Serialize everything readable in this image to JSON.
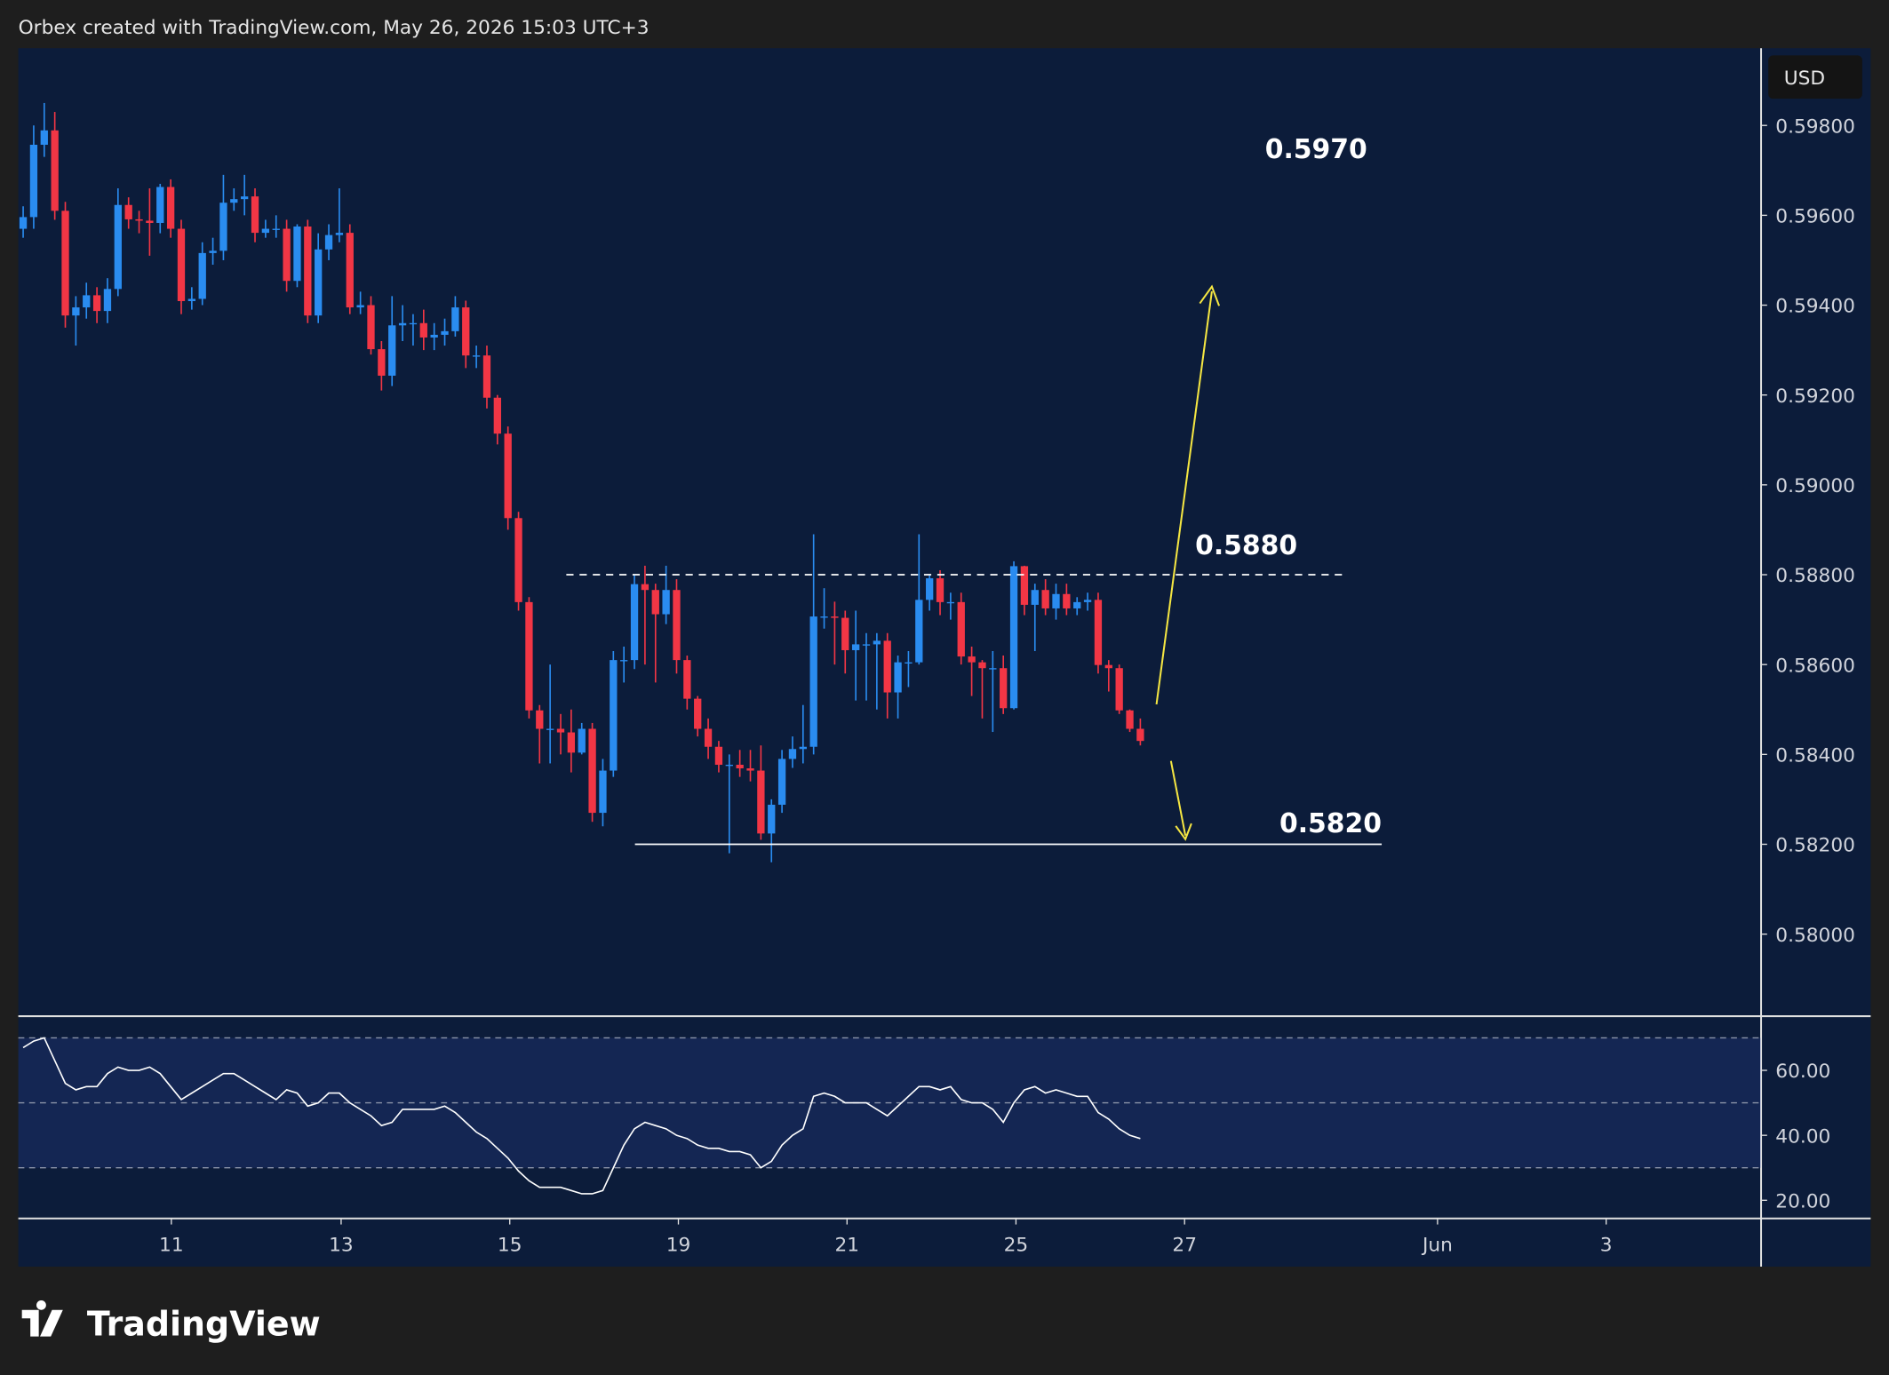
{
  "header": {
    "text": "Orbex created with TradingView.com, May 26, 2026 15:03 UTC+3"
  },
  "logo": "TradingView",
  "chart_data": {
    "type": "candlestick",
    "currency": "USD",
    "colors": {
      "up": "#2a8cf0",
      "down": "#f23645"
    },
    "open": [
      0.5957,
      0.59596,
      0.59757,
      0.59789,
      0.5961,
      0.59377,
      0.59395,
      0.59422,
      0.59387,
      0.59436,
      0.59623,
      0.59591,
      0.59588,
      0.59583,
      0.59663,
      0.5957,
      0.59409,
      0.59414,
      0.59516,
      0.59521,
      0.59628,
      0.59636,
      0.59642,
      0.59561,
      0.5957,
      0.5957,
      0.59454,
      0.59575,
      0.59377,
      0.59524,
      0.59556,
      0.59561,
      0.59395,
      0.594,
      0.59302,
      0.59243,
      0.59355,
      0.5936,
      0.5936,
      0.59328,
      0.59334,
      0.59342,
      0.59395,
      0.59288,
      0.59288,
      0.59194,
      0.59114,
      0.58926,
      0.58739,
      0.58498,
      0.58457,
      0.58457,
      0.58449,
      0.58404,
      0.58457,
      0.5827,
      0.58364,
      0.5861,
      0.5861,
      0.58779,
      0.58766,
      0.58712,
      0.58766,
      0.5861,
      0.58524,
      0.58457,
      0.58417,
      0.58377,
      0.58377,
      0.58369,
      0.58364,
      0.58224,
      0.58288,
      0.5839,
      0.58412,
      0.58417,
      0.58707,
      0.58707,
      0.58704,
      0.58632,
      0.58645,
      0.58645,
      0.58653,
      0.58538,
      0.58605,
      0.58605,
      0.58744,
      0.58792,
      0.58739,
      0.58739,
      0.58618,
      0.58605,
      0.58592,
      0.58592,
      0.58503,
      0.58819,
      0.58733,
      0.58766,
      0.58725,
      0.58757,
      0.58725,
      0.58739,
      0.58744,
      0.58599,
      0.58592,
      0.58498,
      0.58457
    ],
    "high": [
      0.5962,
      0.598,
      0.5985,
      0.5983,
      0.5963,
      0.5942,
      0.5945,
      0.5944,
      0.5946,
      0.5966,
      0.5964,
      0.5961,
      0.5966,
      0.5967,
      0.5968,
      0.5959,
      0.5944,
      0.5954,
      0.5955,
      0.5969,
      0.5966,
      0.5969,
      0.5966,
      0.5959,
      0.596,
      0.5959,
      0.5958,
      0.5959,
      0.5956,
      0.5958,
      0.5966,
      0.5958,
      0.5943,
      0.5942,
      0.5932,
      0.5942,
      0.594,
      0.5938,
      0.5939,
      0.5936,
      0.5937,
      0.5942,
      0.5941,
      0.5931,
      0.5931,
      0.592,
      0.5913,
      0.5894,
      0.5875,
      0.5851,
      0.586,
      0.5849,
      0.585,
      0.5847,
      0.5847,
      0.5839,
      0.5863,
      0.5864,
      0.588,
      0.5882,
      0.5878,
      0.5882,
      0.5879,
      0.5862,
      0.5853,
      0.5848,
      0.5843,
      0.584,
      0.5841,
      0.5841,
      0.5842,
      0.583,
      0.5841,
      0.5844,
      0.5851,
      0.5889,
      0.5877,
      0.5874,
      0.5872,
      0.5872,
      0.5867,
      0.5867,
      0.5867,
      0.5862,
      0.5863,
      0.5889,
      0.588,
      0.5881,
      0.5876,
      0.5876,
      0.5864,
      0.5861,
      0.5863,
      0.5862,
      0.5883,
      0.5882,
      0.5878,
      0.5879,
      0.5878,
      0.5878,
      0.5875,
      0.5876,
      0.5876,
      0.5861,
      0.586,
      0.585,
      0.5848
    ],
    "low": [
      0.5955,
      0.5957,
      0.5973,
      0.5959,
      0.5935,
      0.5931,
      0.5937,
      0.5936,
      0.5936,
      0.5942,
      0.5957,
      0.5956,
      0.5951,
      0.5956,
      0.5955,
      0.5938,
      0.5939,
      0.594,
      0.5949,
      0.595,
      0.5961,
      0.596,
      0.5954,
      0.5955,
      0.5955,
      0.5943,
      0.5944,
      0.5936,
      0.5936,
      0.595,
      0.5954,
      0.5938,
      0.5938,
      0.5929,
      0.5921,
      0.5922,
      0.5932,
      0.5931,
      0.593,
      0.593,
      0.5931,
      0.5933,
      0.5926,
      0.5926,
      0.5917,
      0.5909,
      0.589,
      0.5872,
      0.5848,
      0.5838,
      0.5838,
      0.584,
      0.5836,
      0.584,
      0.5825,
      0.5824,
      0.5835,
      0.5856,
      0.5859,
      0.586,
      0.5856,
      0.5869,
      0.5858,
      0.585,
      0.5844,
      0.5839,
      0.5836,
      0.5818,
      0.5835,
      0.5834,
      0.5821,
      0.5816,
      0.5827,
      0.5837,
      0.5838,
      0.584,
      0.5868,
      0.586,
      0.5858,
      0.5852,
      0.5852,
      0.585,
      0.5848,
      0.5848,
      0.5855,
      0.586,
      0.5872,
      0.5871,
      0.587,
      0.586,
      0.5853,
      0.5848,
      0.5845,
      0.5849,
      0.585,
      0.5871,
      0.5863,
      0.5871,
      0.587,
      0.5871,
      0.5871,
      0.5872,
      0.5858,
      0.5854,
      0.5849,
      0.5845,
      0.5842
    ],
    "close": [
      0.59596,
      0.59757,
      0.59789,
      0.5961,
      0.59377,
      0.59395,
      0.59422,
      0.59387,
      0.59436,
      0.59623,
      0.59591,
      0.59588,
      0.59583,
      0.59663,
      0.5957,
      0.59409,
      0.59414,
      0.59516,
      0.59521,
      0.59628,
      0.59636,
      0.59642,
      0.59561,
      0.5957,
      0.5957,
      0.59454,
      0.59575,
      0.59377,
      0.59524,
      0.59556,
      0.59561,
      0.59395,
      0.594,
      0.59302,
      0.59243,
      0.59355,
      0.5936,
      0.5936,
      0.59328,
      0.59334,
      0.59342,
      0.59395,
      0.59288,
      0.59288,
      0.59194,
      0.59114,
      0.58926,
      0.58739,
      0.58498,
      0.58457,
      0.58457,
      0.58449,
      0.58404,
      0.58457,
      0.5827,
      0.58364,
      0.5861,
      0.5861,
      0.58779,
      0.58766,
      0.58712,
      0.58766,
      0.5861,
      0.58524,
      0.58457,
      0.58417,
      0.58377,
      0.58377,
      0.58369,
      0.58364,
      0.58224,
      0.58288,
      0.5839,
      0.58412,
      0.58417,
      0.58707,
      0.58707,
      0.58704,
      0.58632,
      0.58645,
      0.58645,
      0.58653,
      0.58538,
      0.58605,
      0.58605,
      0.58744,
      0.58792,
      0.58739,
      0.58739,
      0.58618,
      0.58605,
      0.58592,
      0.58592,
      0.58503,
      0.58819,
      0.58733,
      0.58766,
      0.58725,
      0.58757,
      0.58725,
      0.58739,
      0.58744,
      0.58599,
      0.58592,
      0.58498,
      0.58457,
      0.5843
    ],
    "xlim": [
      -0.46,
      164.9
    ],
    "xticks": [
      {
        "value": 14.06,
        "label": "11"
      },
      {
        "value": 30.17,
        "label": "13"
      },
      {
        "value": 46.17,
        "label": "15"
      },
      {
        "value": 62.17,
        "label": "19"
      },
      {
        "value": 78.17,
        "label": "21"
      },
      {
        "value": 94.2,
        "label": "25"
      },
      {
        "value": 110.2,
        "label": "27"
      },
      {
        "value": 134.2,
        "label": "Jun"
      },
      {
        "value": 150.2,
        "label": "3"
      }
    ],
    "ylim": [
      0.5782,
      0.59972
    ],
    "yticks": [
      {
        "value": 0.598,
        "label": "0.59800"
      },
      {
        "value": 0.596,
        "label": "0.59600"
      },
      {
        "value": 0.594,
        "label": "0.59400"
      },
      {
        "value": 0.592,
        "label": "0.59200"
      },
      {
        "value": 0.59,
        "label": "0.59000"
      },
      {
        "value": 0.588,
        "label": "0.58800"
      },
      {
        "value": 0.586,
        "label": "0.58600"
      },
      {
        "value": 0.584,
        "label": "0.58400"
      },
      {
        "value": 0.582,
        "label": "0.58200"
      },
      {
        "value": 0.58,
        "label": "0.58000"
      }
    ],
    "levels": [
      {
        "value": 0.597,
        "label": "0.5970",
        "style": "none"
      },
      {
        "value": 0.588,
        "label": "0.5880",
        "style": "dashed"
      },
      {
        "value": 0.582,
        "label": "0.5820",
        "style": "solid"
      }
    ],
    "rsi": {
      "type": "line",
      "color": "#ffffff",
      "values": [
        67,
        69,
        70,
        63,
        56,
        54,
        55,
        55,
        59,
        61,
        60,
        60,
        61,
        59,
        55,
        51,
        53,
        55,
        57,
        59,
        59,
        57,
        55,
        53,
        51,
        54,
        53,
        49,
        50,
        53,
        53,
        50,
        48,
        46,
        43,
        44,
        48,
        48,
        48,
        48,
        49,
        47,
        44,
        41,
        39,
        36,
        33,
        29,
        26,
        24,
        24,
        24,
        23,
        22,
        22,
        23,
        30,
        37,
        42,
        44,
        43,
        42,
        40,
        39,
        37,
        36,
        36,
        35,
        35,
        34,
        30,
        32,
        37,
        40,
        42,
        52,
        53,
        52,
        50,
        50,
        50,
        48,
        46,
        49,
        52,
        55,
        55,
        54,
        55,
        51,
        50,
        50,
        48,
        44,
        50,
        54,
        55,
        53,
        54,
        53,
        52,
        52,
        47,
        45,
        42,
        40,
        39
      ],
      "y2lim": [
        14.4,
        76.3
      ],
      "y2ticks": [
        {
          "value": 60,
          "label": "60.00"
        },
        {
          "value": 40,
          "label": "40.00"
        },
        {
          "value": 20,
          "label": "20.00"
        }
      ],
      "bands": [
        70,
        50,
        30
      ]
    }
  }
}
